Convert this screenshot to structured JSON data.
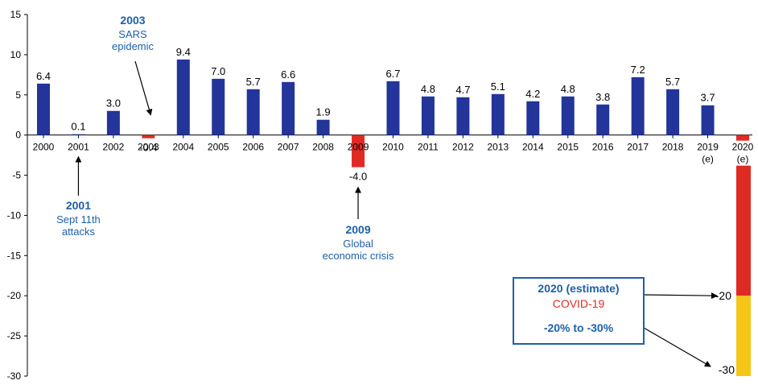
{
  "chart_data": {
    "type": "bar",
    "categories": [
      "2000",
      "2001",
      "2002",
      "2003",
      "2004",
      "2005",
      "2006",
      "2007",
      "2008",
      "2009",
      "2010",
      "2011",
      "2012",
      "2013",
      "2014",
      "2015",
      "2016",
      "2017",
      "2018",
      "2019",
      "2020"
    ],
    "category_notes": {
      "2019": "(e)",
      "2020": "(e)"
    },
    "values": [
      6.4,
      0.1,
      3.0,
      -0.4,
      9.4,
      7.0,
      5.7,
      6.6,
      1.9,
      -4.0,
      6.7,
      4.8,
      4.7,
      5.1,
      4.2,
      4.8,
      3.8,
      7.2,
      5.7,
      3.7,
      -0.7
    ],
    "value_labels": [
      "6.4",
      "0.1",
      "3.0",
      "-0.4",
      "9.4",
      "7.0",
      "5.7",
      "6.6",
      "1.9",
      "-4.0",
      "6.7",
      "4.8",
      "4.7",
      "5.1",
      "4.2",
      "4.8",
      "3.8",
      "7.2",
      "5.7",
      "3.7",
      ""
    ],
    "estimate_range": {
      "category": "2020",
      "low": -30,
      "high": -20,
      "low_label": "-30",
      "high_label": "-20"
    },
    "ylim": [
      -30,
      15
    ],
    "yticks": [
      15,
      10,
      5,
      0,
      -5,
      -10,
      -15,
      -20,
      -25,
      -30
    ],
    "colors": {
      "positive": "#23349a",
      "negative": "#e02a24",
      "estimate_low": "#f5c518",
      "annotation": "#1f5fa8"
    },
    "title": "",
    "xlabel": "",
    "ylabel": "",
    "legend": "none",
    "grid": false
  },
  "annotations": [
    {
      "category": "2003",
      "year": "2003",
      "lines": [
        "SARS",
        "epidemic"
      ]
    },
    {
      "category": "2001",
      "year": "2001",
      "lines": [
        "Sept 11th",
        "attacks"
      ]
    },
    {
      "category": "2009",
      "year": "2009",
      "lines": [
        "Global",
        "economic crisis"
      ]
    }
  ],
  "callout_box": {
    "title": "2020 (estimate)",
    "subtitle": "COVID-19",
    "range": "-20% to -30%"
  }
}
